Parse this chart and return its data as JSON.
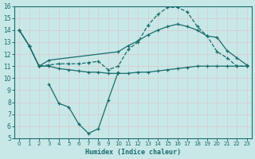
{
  "xlabel": "Humidex (Indice chaleur)",
  "bg_color": "#c8e8e8",
  "grid_color": "#b0d0d0",
  "line_color": "#1a6b6b",
  "xlim": [
    -0.5,
    23.5
  ],
  "ylim": [
    5,
    16
  ],
  "xticks": [
    0,
    1,
    2,
    3,
    4,
    5,
    6,
    7,
    8,
    9,
    10,
    11,
    12,
    13,
    14,
    15,
    16,
    17,
    18,
    19,
    20,
    21,
    22,
    23
  ],
  "yticks": [
    5,
    6,
    7,
    8,
    9,
    10,
    11,
    12,
    13,
    14,
    15,
    16
  ],
  "line1_x": [
    0,
    1,
    2,
    3,
    4,
    5,
    6,
    7,
    8,
    9,
    10,
    11,
    12,
    13,
    14,
    15,
    16,
    17,
    18,
    19,
    20,
    21,
    22,
    23
  ],
  "line1_y": [
    14.0,
    12.7,
    11.0,
    11.1,
    11.2,
    11.2,
    11.2,
    11.3,
    11.4,
    10.7,
    11.0,
    12.4,
    13.0,
    14.4,
    15.3,
    15.9,
    15.9,
    15.5,
    14.3,
    13.5,
    12.2,
    11.7,
    11.0,
    11.0
  ],
  "line2_x": [
    0,
    1,
    2,
    3,
    10,
    11,
    12,
    13,
    14,
    15,
    16,
    17,
    18,
    19,
    20,
    21,
    22,
    23
  ],
  "line2_y": [
    14.0,
    12.7,
    11.0,
    11.5,
    12.2,
    12.7,
    13.1,
    13.6,
    14.0,
    14.3,
    14.5,
    14.3,
    14.0,
    13.5,
    13.4,
    12.3,
    11.7,
    11.1
  ],
  "line3_x": [
    0,
    1,
    2,
    3,
    4,
    5,
    6,
    7,
    8,
    9,
    10,
    11,
    12,
    13,
    14,
    15,
    16,
    17,
    18,
    19,
    20,
    21,
    22,
    23
  ],
  "line3_y": [
    14.0,
    12.7,
    11.0,
    11.0,
    10.8,
    10.7,
    10.6,
    10.5,
    10.5,
    10.4,
    10.4,
    10.4,
    10.5,
    10.5,
    10.6,
    10.7,
    10.8,
    10.9,
    11.0,
    11.0,
    11.0,
    11.0,
    11.0,
    11.0
  ],
  "line4_x": [
    3,
    4,
    5,
    6,
    7,
    8,
    9,
    10
  ],
  "line4_y": [
    9.5,
    7.9,
    7.6,
    6.2,
    5.4,
    5.8,
    8.2,
    10.5
  ],
  "line1_style": "--",
  "line2_style": "-",
  "line3_style": "-",
  "line4_style": "-"
}
